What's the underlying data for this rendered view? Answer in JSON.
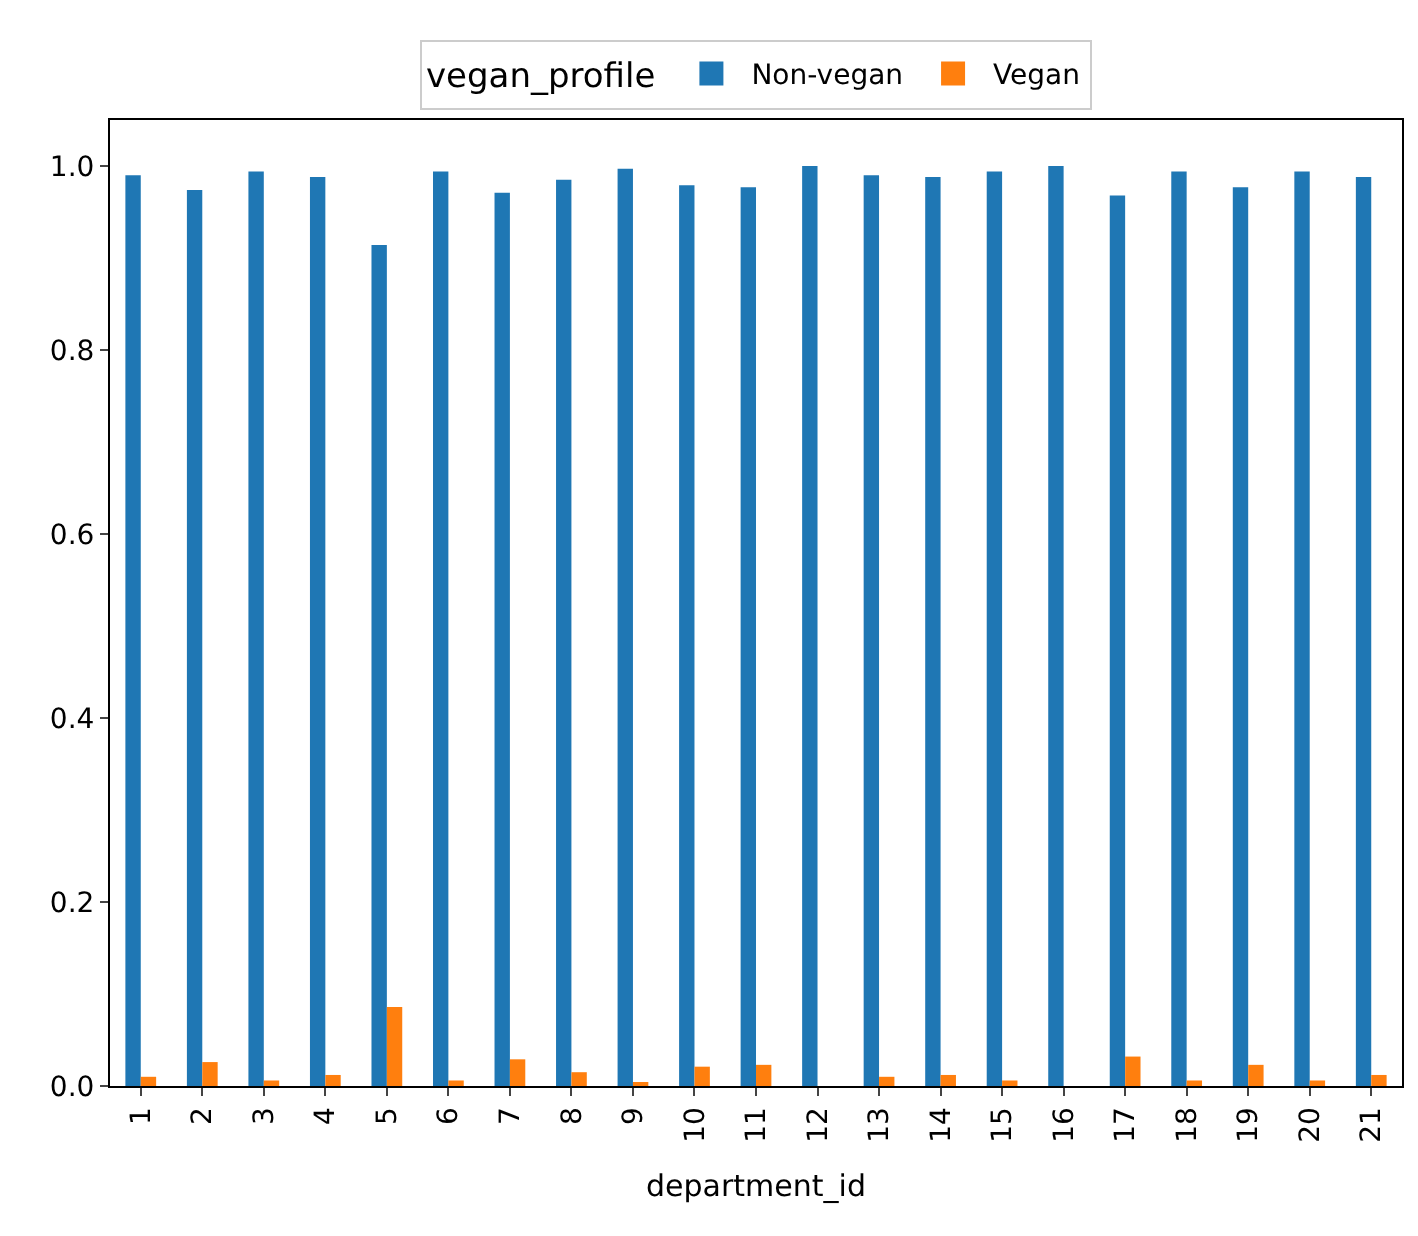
{
  "chart_data": {
    "type": "bar",
    "xlabel": "department_id",
    "legend_title": "vegan_profile",
    "categories": [
      "1",
      "2",
      "3",
      "4",
      "5",
      "6",
      "7",
      "8",
      "9",
      "10",
      "11",
      "12",
      "13",
      "14",
      "15",
      "16",
      "17",
      "18",
      "19",
      "20",
      "21"
    ],
    "series": [
      {
        "name": "Non-vegan",
        "color": "#1f77b4",
        "values": [
          0.99,
          0.974,
          0.994,
          0.988,
          0.914,
          0.994,
          0.971,
          0.985,
          0.997,
          0.979,
          0.977,
          1.0,
          0.99,
          0.988,
          0.994,
          1.0,
          0.968,
          0.994,
          0.977,
          0.994,
          0.988
        ]
      },
      {
        "name": "Vegan",
        "color": "#ff7f0e",
        "values": [
          0.01,
          0.026,
          0.006,
          0.012,
          0.086,
          0.006,
          0.029,
          0.015,
          0.003,
          0.021,
          0.023,
          0,
          0.01,
          0.012,
          0.006,
          0,
          0.032,
          0.006,
          0.023,
          0.006,
          0.012
        ]
      }
    ],
    "ylim": [
      0,
      1.05
    ],
    "yticks": [
      {
        "value": 0,
        "label": "0.0"
      },
      {
        "value": 0.2,
        "label": "0.2"
      },
      {
        "value": 0.4,
        "label": "0.4"
      },
      {
        "value": 0.6,
        "label": "0.6"
      },
      {
        "value": 0.8,
        "label": "0.8"
      },
      {
        "value": 1,
        "label": "1.0"
      }
    ],
    "grid": false,
    "legend": "top"
  }
}
